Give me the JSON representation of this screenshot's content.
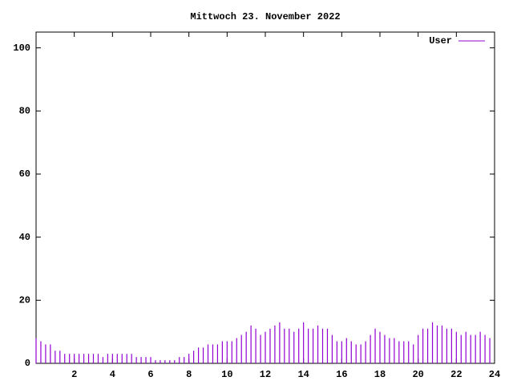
{
  "chart_data": {
    "type": "impulses",
    "title": "Mittwoch 23. November 2022",
    "x": [
      0,
      0.25,
      0.5,
      0.75,
      1,
      1.25,
      1.5,
      1.75,
      2,
      2.25,
      2.5,
      2.75,
      3,
      3.25,
      3.5,
      3.75,
      4,
      4.25,
      4.5,
      4.75,
      5,
      5.25,
      5.5,
      5.75,
      6,
      6.25,
      6.5,
      6.75,
      7,
      7.25,
      7.5,
      7.75,
      8,
      8.25,
      8.5,
      8.75,
      9,
      9.25,
      9.5,
      9.75,
      10,
      10.25,
      10.5,
      10.75,
      11,
      11.25,
      11.5,
      11.75,
      12,
      12.25,
      12.5,
      12.75,
      13,
      13.25,
      13.5,
      13.75,
      14,
      14.25,
      14.5,
      14.75,
      15,
      15.25,
      15.5,
      15.75,
      16,
      16.25,
      16.5,
      16.75,
      17,
      17.25,
      17.5,
      17.75,
      18,
      18.25,
      18.5,
      18.75,
      19,
      19.25,
      19.5,
      19.75,
      20,
      20.25,
      20.5,
      20.75,
      21,
      21.25,
      21.5,
      21.75,
      22,
      22.25,
      22.5,
      22.75,
      23,
      23.25,
      23.5,
      23.75
    ],
    "series": [
      {
        "name": "User",
        "color": "#9400d3",
        "values": [
          8,
          7,
          6,
          6,
          4,
          4,
          3,
          3,
          3,
          3,
          3,
          3,
          3,
          3,
          2,
          3,
          3,
          3,
          3,
          3,
          3,
          2,
          2,
          2,
          2,
          1,
          1,
          1,
          1,
          1,
          2,
          2,
          3,
          4,
          5,
          5,
          6,
          6,
          6,
          7,
          7,
          7,
          8,
          9,
          10,
          12,
          11,
          9,
          10,
          11,
          12,
          13,
          11,
          11,
          10,
          11,
          13,
          11,
          11,
          12,
          11,
          11,
          9,
          7,
          7,
          8,
          7,
          6,
          6,
          7,
          9,
          11,
          10,
          9,
          8,
          8,
          7,
          7,
          7,
          6,
          9,
          11,
          11,
          13,
          12,
          12,
          11,
          11,
          10,
          9,
          10,
          9,
          9,
          10,
          9,
          8
        ]
      }
    ],
    "xlim": [
      0,
      24
    ],
    "xticks": [
      2,
      4,
      6,
      8,
      10,
      12,
      14,
      16,
      18,
      20,
      22,
      24
    ],
    "ylim": [
      0,
      105
    ],
    "yticks": [
      0,
      20,
      40,
      60,
      80,
      100
    ],
    "legend": "top-right"
  }
}
